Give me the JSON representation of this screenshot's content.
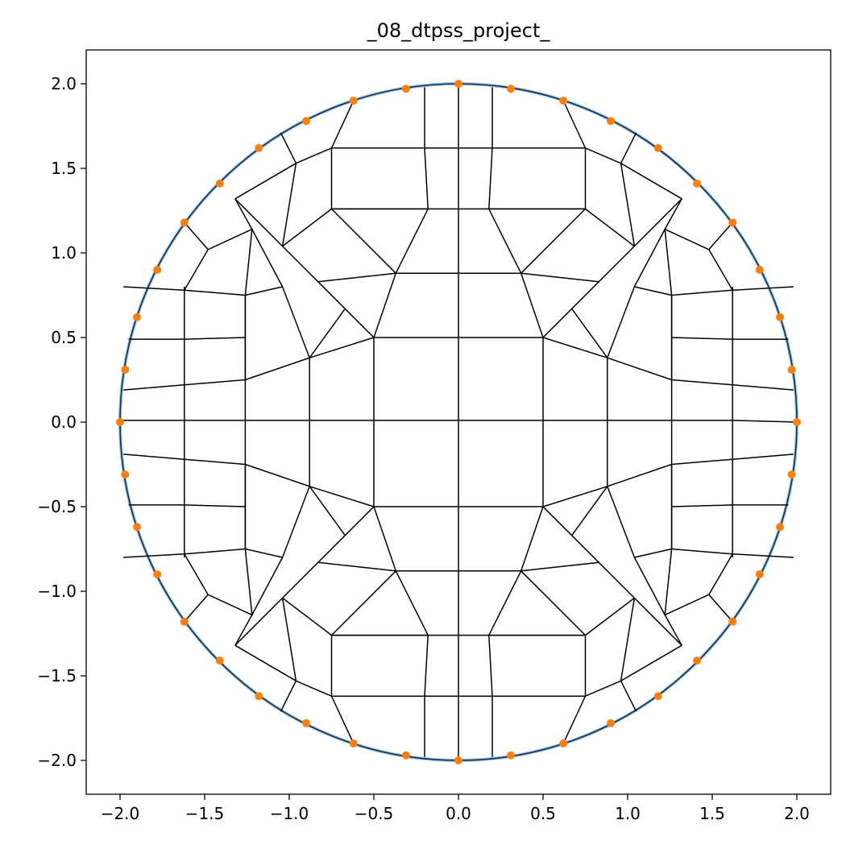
{
  "chart_data": {
    "type": "scatter",
    "title": "_08_dtpss_project_",
    "xlabel": "",
    "ylabel": "",
    "xlim": [
      -2.2,
      2.2
    ],
    "ylim": [
      -2.2,
      2.2
    ],
    "grid": false,
    "x_ticks": [
      -2.0,
      -1.5,
      -1.0,
      -0.5,
      0.0,
      0.5,
      1.0,
      1.5,
      2.0
    ],
    "y_ticks": [
      -2.0,
      -1.5,
      -1.0,
      -0.5,
      0.0,
      0.5,
      1.0,
      1.5,
      2.0
    ],
    "x_tick_labels": [
      "−2.0",
      "−1.5",
      "−1.0",
      "−0.5",
      "0.0",
      "0.5",
      "1.0",
      "1.5",
      "2.0"
    ],
    "y_tick_labels": [
      "−2.0",
      "−1.5",
      "−1.0",
      "−0.5",
      "0.0",
      "0.5",
      "1.0",
      "1.5",
      "2.0"
    ],
    "colors": {
      "boundary_fill": "#9dc3e0",
      "boundary_edge": "#10304f",
      "mesh": "#000000",
      "points": "#ff7f0e"
    },
    "boundary_circle": {
      "center": [
        0,
        0
      ],
      "radius": 2.0
    },
    "boundary_points": [
      [
        0.0,
        2.0
      ],
      [
        0.31,
        1.97
      ],
      [
        0.62,
        1.9
      ],
      [
        0.9,
        1.78
      ],
      [
        1.18,
        1.62
      ],
      [
        1.41,
        1.41
      ],
      [
        1.62,
        1.18
      ],
      [
        1.78,
        0.9
      ],
      [
        1.9,
        0.62
      ],
      [
        1.97,
        0.31
      ],
      [
        2.0,
        0.0
      ],
      [
        1.97,
        -0.31
      ],
      [
        1.9,
        -0.62
      ],
      [
        1.78,
        -0.9
      ],
      [
        1.62,
        -1.18
      ],
      [
        1.41,
        -1.41
      ],
      [
        1.18,
        -1.62
      ],
      [
        0.9,
        -1.78
      ],
      [
        0.62,
        -1.9
      ],
      [
        0.31,
        -1.97
      ],
      [
        0.0,
        -2.0
      ],
      [
        -0.31,
        -1.97
      ],
      [
        -0.62,
        -1.9
      ],
      [
        -0.9,
        -1.78
      ],
      [
        -1.18,
        -1.62
      ],
      [
        -1.41,
        -1.41
      ],
      [
        -1.62,
        -1.18
      ],
      [
        -1.78,
        -0.9
      ],
      [
        -1.9,
        -0.62
      ],
      [
        -1.97,
        -0.31
      ],
      [
        -2.0,
        0.0
      ],
      [
        -1.97,
        0.31
      ],
      [
        -1.9,
        0.62
      ],
      [
        -1.78,
        0.9
      ],
      [
        -1.62,
        1.18
      ],
      [
        -1.41,
        1.41
      ],
      [
        -1.18,
        1.62
      ],
      [
        -0.9,
        1.78
      ],
      [
        -0.62,
        1.9
      ],
      [
        -0.31,
        1.97
      ]
    ],
    "mesh_lines": [
      [
        [
          0,
          2.0
        ],
        [
          0,
          1.62
        ],
        [
          0,
          1.26
        ],
        [
          0,
          0.88
        ],
        [
          0,
          0.5
        ],
        [
          0,
          0
        ],
        [
          0,
          -0.5
        ],
        [
          0,
          -0.88
        ],
        [
          0,
          -1.26
        ],
        [
          0,
          -1.62
        ],
        [
          0,
          -2.0
        ]
      ],
      [
        [
          -0.5,
          0.5
        ],
        [
          0.5,
          0.5
        ]
      ],
      [
        [
          -0.5,
          -0.5
        ],
        [
          0.5,
          -0.5
        ]
      ],
      [
        [
          -0.5,
          0.5
        ],
        [
          -0.5,
          -0.5
        ]
      ],
      [
        [
          0.5,
          0.5
        ],
        [
          0.5,
          -0.5
        ]
      ],
      [
        [
          -2.0,
          0.01
        ],
        [
          -1.62,
          0.01
        ],
        [
          -1.26,
          0.01
        ],
        [
          -0.88,
          0.01
        ],
        [
          -0.5,
          0.01
        ],
        [
          0,
          0.01
        ],
        [
          0.5,
          0.01
        ],
        [
          0.88,
          0.01
        ],
        [
          1.26,
          0.01
        ],
        [
          1.62,
          0.01
        ],
        [
          2.0,
          0.0
        ]
      ],
      [
        [
          -0.5,
          0.5
        ],
        [
          -0.37,
          0.88
        ],
        [
          -0.18,
          1.26
        ],
        [
          -0.2,
          1.62
        ],
        [
          -0.2,
          1.98
        ]
      ],
      [
        [
          0.5,
          0.5
        ],
        [
          0.37,
          0.88
        ],
        [
          0.18,
          1.26
        ],
        [
          0.2,
          1.62
        ],
        [
          0.2,
          1.98
        ]
      ],
      [
        [
          -0.5,
          -0.5
        ],
        [
          -0.37,
          -0.88
        ],
        [
          -0.18,
          -1.26
        ],
        [
          -0.2,
          -1.62
        ],
        [
          -0.2,
          -1.98
        ]
      ],
      [
        [
          0.5,
          -0.5
        ],
        [
          0.37,
          -0.88
        ],
        [
          0.18,
          -1.26
        ],
        [
          0.2,
          -1.62
        ],
        [
          0.2,
          -1.98
        ]
      ],
      [
        [
          -0.37,
          0.88
        ],
        [
          0.37,
          0.88
        ]
      ],
      [
        [
          -0.37,
          -0.88
        ],
        [
          0.37,
          -0.88
        ]
      ],
      [
        [
          -0.75,
          1.26
        ],
        [
          0.75,
          1.26
        ]
      ],
      [
        [
          -0.75,
          -1.26
        ],
        [
          0.75,
          -1.26
        ]
      ],
      [
        [
          -0.2,
          1.62
        ],
        [
          0.2,
          1.62
        ]
      ],
      [
        [
          -0.2,
          -1.62
        ],
        [
          0.2,
          -1.62
        ]
      ],
      [
        [
          -0.5,
          0.5
        ],
        [
          -0.88,
          0.38
        ],
        [
          -1.26,
          0.25
        ],
        [
          -1.62,
          0.22
        ],
        [
          -1.98,
          0.19
        ]
      ],
      [
        [
          0.5,
          0.5
        ],
        [
          0.88,
          0.38
        ],
        [
          1.26,
          0.25
        ],
        [
          1.62,
          0.22
        ],
        [
          1.98,
          0.19
        ]
      ],
      [
        [
          -0.5,
          -0.5
        ],
        [
          -0.88,
          -0.38
        ],
        [
          -1.26,
          -0.25
        ],
        [
          -1.62,
          -0.22
        ],
        [
          -1.98,
          -0.19
        ]
      ],
      [
        [
          0.5,
          -0.5
        ],
        [
          0.88,
          -0.38
        ],
        [
          1.26,
          -0.25
        ],
        [
          1.62,
          -0.22
        ],
        [
          1.98,
          -0.19
        ]
      ],
      [
        [
          -0.88,
          0.38
        ],
        [
          -0.88,
          -0.38
        ]
      ],
      [
        [
          0.88,
          0.38
        ],
        [
          0.88,
          -0.38
        ]
      ],
      [
        [
          -1.26,
          0.75
        ],
        [
          -1.26,
          -0.75
        ]
      ],
      [
        [
          1.26,
          0.75
        ],
        [
          1.26,
          -0.75
        ]
      ],
      [
        [
          -1.62,
          0.8
        ],
        [
          -1.62,
          -0.8
        ]
      ],
      [
        [
          1.62,
          0.8
        ],
        [
          1.62,
          -0.8
        ]
      ],
      [
        [
          -0.88,
          0.38
        ],
        [
          -0.67,
          0.67
        ],
        [
          -0.5,
          0.5
        ]
      ],
      [
        [
          0.88,
          0.38
        ],
        [
          0.67,
          0.67
        ],
        [
          0.5,
          0.5
        ]
      ],
      [
        [
          -0.88,
          -0.38
        ],
        [
          -0.67,
          -0.67
        ],
        [
          -0.5,
          -0.5
        ]
      ],
      [
        [
          0.88,
          -0.38
        ],
        [
          0.67,
          -0.67
        ],
        [
          0.5,
          -0.5
        ]
      ],
      [
        [
          -0.67,
          0.67
        ],
        [
          -0.83,
          0.83
        ],
        [
          -1.04,
          1.04
        ],
        [
          -1.32,
          1.32
        ]
      ],
      [
        [
          0.67,
          0.67
        ],
        [
          0.83,
          0.83
        ],
        [
          1.04,
          1.04
        ],
        [
          1.32,
          1.32
        ]
      ],
      [
        [
          -0.67,
          -0.67
        ],
        [
          -0.83,
          -0.83
        ],
        [
          -1.04,
          -1.04
        ],
        [
          -1.32,
          -1.32
        ]
      ],
      [
        [
          0.67,
          -0.67
        ],
        [
          0.83,
          -0.83
        ],
        [
          1.04,
          -1.04
        ],
        [
          1.32,
          -1.32
        ]
      ],
      [
        [
          -0.37,
          0.88
        ],
        [
          -0.83,
          0.83
        ]
      ],
      [
        [
          0.37,
          0.88
        ],
        [
          0.83,
          0.83
        ]
      ],
      [
        [
          -0.37,
          -0.88
        ],
        [
          -0.83,
          -0.83
        ]
      ],
      [
        [
          0.37,
          -0.88
        ],
        [
          0.83,
          -0.83
        ]
      ],
      [
        [
          -0.88,
          0.38
        ],
        [
          -1.04,
          0.8
        ],
        [
          -1.22,
          1.14
        ]
      ],
      [
        [
          0.88,
          0.38
        ],
        [
          1.04,
          0.8
        ],
        [
          1.22,
          1.14
        ]
      ],
      [
        [
          -0.88,
          -0.38
        ],
        [
          -1.04,
          -0.8
        ],
        [
          -1.22,
          -1.14
        ]
      ],
      [
        [
          0.88,
          -0.38
        ],
        [
          1.04,
          -0.8
        ],
        [
          1.22,
          -1.14
        ]
      ],
      [
        [
          -1.26,
          0.25
        ],
        [
          -1.26,
          0.75
        ],
        [
          -1.22,
          1.14
        ],
        [
          -1.32,
          1.32
        ]
      ],
      [
        [
          1.26,
          0.25
        ],
        [
          1.26,
          0.75
        ],
        [
          1.22,
          1.14
        ],
        [
          1.32,
          1.32
        ]
      ],
      [
        [
          -1.26,
          -0.25
        ],
        [
          -1.26,
          -0.75
        ],
        [
          -1.22,
          -1.14
        ],
        [
          -1.32,
          -1.32
        ]
      ],
      [
        [
          1.26,
          -0.25
        ],
        [
          1.26,
          -0.75
        ],
        [
          1.22,
          -1.14
        ],
        [
          1.32,
          -1.32
        ]
      ],
      [
        [
          -0.75,
          1.26
        ],
        [
          -0.75,
          1.62
        ],
        [
          -0.62,
          1.9
        ]
      ],
      [
        [
          0.75,
          1.26
        ],
        [
          0.75,
          1.62
        ],
        [
          0.62,
          1.9
        ]
      ],
      [
        [
          -0.75,
          -1.26
        ],
        [
          -0.75,
          -1.62
        ],
        [
          -0.62,
          -1.9
        ]
      ],
      [
        [
          0.75,
          -1.26
        ],
        [
          0.75,
          -1.62
        ],
        [
          0.62,
          -1.9
        ]
      ],
      [
        [
          -0.37,
          0.88
        ],
        [
          -0.75,
          1.26
        ]
      ],
      [
        [
          0.37,
          0.88
        ],
        [
          0.75,
          1.26
        ]
      ],
      [
        [
          -0.37,
          -0.88
        ],
        [
          -0.75,
          -1.26
        ]
      ],
      [
        [
          0.37,
          -0.88
        ],
        [
          0.75,
          -1.26
        ]
      ],
      [
        [
          -0.18,
          1.26
        ],
        [
          -0.75,
          1.26
        ],
        [
          -1.04,
          1.04
        ]
      ],
      [
        [
          0.18,
          1.26
        ],
        [
          0.75,
          1.26
        ],
        [
          1.04,
          1.04
        ]
      ],
      [
        [
          -0.18,
          -1.26
        ],
        [
          -0.75,
          -1.26
        ],
        [
          -1.04,
          -1.04
        ]
      ],
      [
        [
          0.18,
          -1.26
        ],
        [
          0.75,
          -1.26
        ],
        [
          1.04,
          -1.04
        ]
      ],
      [
        [
          -0.2,
          1.62
        ],
        [
          -0.75,
          1.62
        ],
        [
          -0.96,
          1.53
        ],
        [
          -1.32,
          1.32
        ]
      ],
      [
        [
          0.2,
          1.62
        ],
        [
          0.75,
          1.62
        ],
        [
          0.96,
          1.53
        ],
        [
          1.32,
          1.32
        ]
      ],
      [
        [
          -0.2,
          -1.62
        ],
        [
          -0.75,
          -1.62
        ],
        [
          -0.96,
          -1.53
        ],
        [
          -1.32,
          -1.32
        ]
      ],
      [
        [
          0.2,
          -1.62
        ],
        [
          0.75,
          -1.62
        ],
        [
          0.96,
          -1.53
        ],
        [
          1.32,
          -1.32
        ]
      ],
      [
        [
          -1.26,
          0.75
        ],
        [
          -1.62,
          0.78
        ],
        [
          -1.98,
          0.8
        ]
      ],
      [
        [
          1.26,
          0.75
        ],
        [
          1.62,
          0.78
        ],
        [
          1.98,
          0.8
        ]
      ],
      [
        [
          -1.26,
          -0.75
        ],
        [
          -1.62,
          -0.78
        ],
        [
          -1.98,
          -0.8
        ]
      ],
      [
        [
          1.26,
          -0.75
        ],
        [
          1.62,
          -0.78
        ],
        [
          1.98,
          -0.8
        ]
      ],
      [
        [
          -1.26,
          0.5
        ],
        [
          -1.62,
          0.49
        ],
        [
          -1.95,
          0.49
        ]
      ],
      [
        [
          1.26,
          0.5
        ],
        [
          1.62,
          0.49
        ],
        [
          1.95,
          0.49
        ]
      ],
      [
        [
          -1.26,
          -0.5
        ],
        [
          -1.62,
          -0.49
        ],
        [
          -1.95,
          -0.49
        ]
      ],
      [
        [
          1.26,
          -0.5
        ],
        [
          1.62,
          -0.49
        ],
        [
          1.95,
          -0.49
        ]
      ],
      [
        [
          -1.04,
          0.8
        ],
        [
          -1.26,
          0.75
        ]
      ],
      [
        [
          1.04,
          0.8
        ],
        [
          1.26,
          0.75
        ]
      ],
      [
        [
          -1.04,
          -0.8
        ],
        [
          -1.26,
          -0.75
        ]
      ],
      [
        [
          1.04,
          -0.8
        ],
        [
          1.26,
          -0.75
        ]
      ],
      [
        [
          -1.22,
          1.14
        ],
        [
          -1.48,
          1.02
        ],
        [
          -1.62,
          1.18
        ]
      ],
      [
        [
          1.22,
          1.14
        ],
        [
          1.48,
          1.02
        ],
        [
          1.62,
          1.18
        ]
      ],
      [
        [
          -1.22,
          -1.14
        ],
        [
          -1.48,
          -1.02
        ],
        [
          -1.62,
          -1.18
        ]
      ],
      [
        [
          1.22,
          -1.14
        ],
        [
          1.48,
          -1.02
        ],
        [
          1.62,
          -1.18
        ]
      ],
      [
        [
          -1.04,
          1.04
        ],
        [
          -0.96,
          1.53
        ],
        [
          -1.05,
          1.71
        ]
      ],
      [
        [
          1.04,
          1.04
        ],
        [
          0.96,
          1.53
        ],
        [
          1.05,
          1.71
        ]
      ],
      [
        [
          -1.04,
          -1.04
        ],
        [
          -0.96,
          -1.53
        ],
        [
          -1.05,
          -1.71
        ]
      ],
      [
        [
          1.04,
          -1.04
        ],
        [
          0.96,
          -1.53
        ],
        [
          1.05,
          -1.71
        ]
      ],
      [
        [
          -1.48,
          1.02
        ],
        [
          -1.62,
          0.78
        ]
      ],
      [
        [
          1.48,
          1.02
        ],
        [
          1.62,
          0.78
        ]
      ],
      [
        [
          -1.48,
          -1.02
        ],
        [
          -1.62,
          -0.78
        ]
      ],
      [
        [
          1.48,
          -1.02
        ],
        [
          1.62,
          -0.78
        ]
      ]
    ]
  }
}
